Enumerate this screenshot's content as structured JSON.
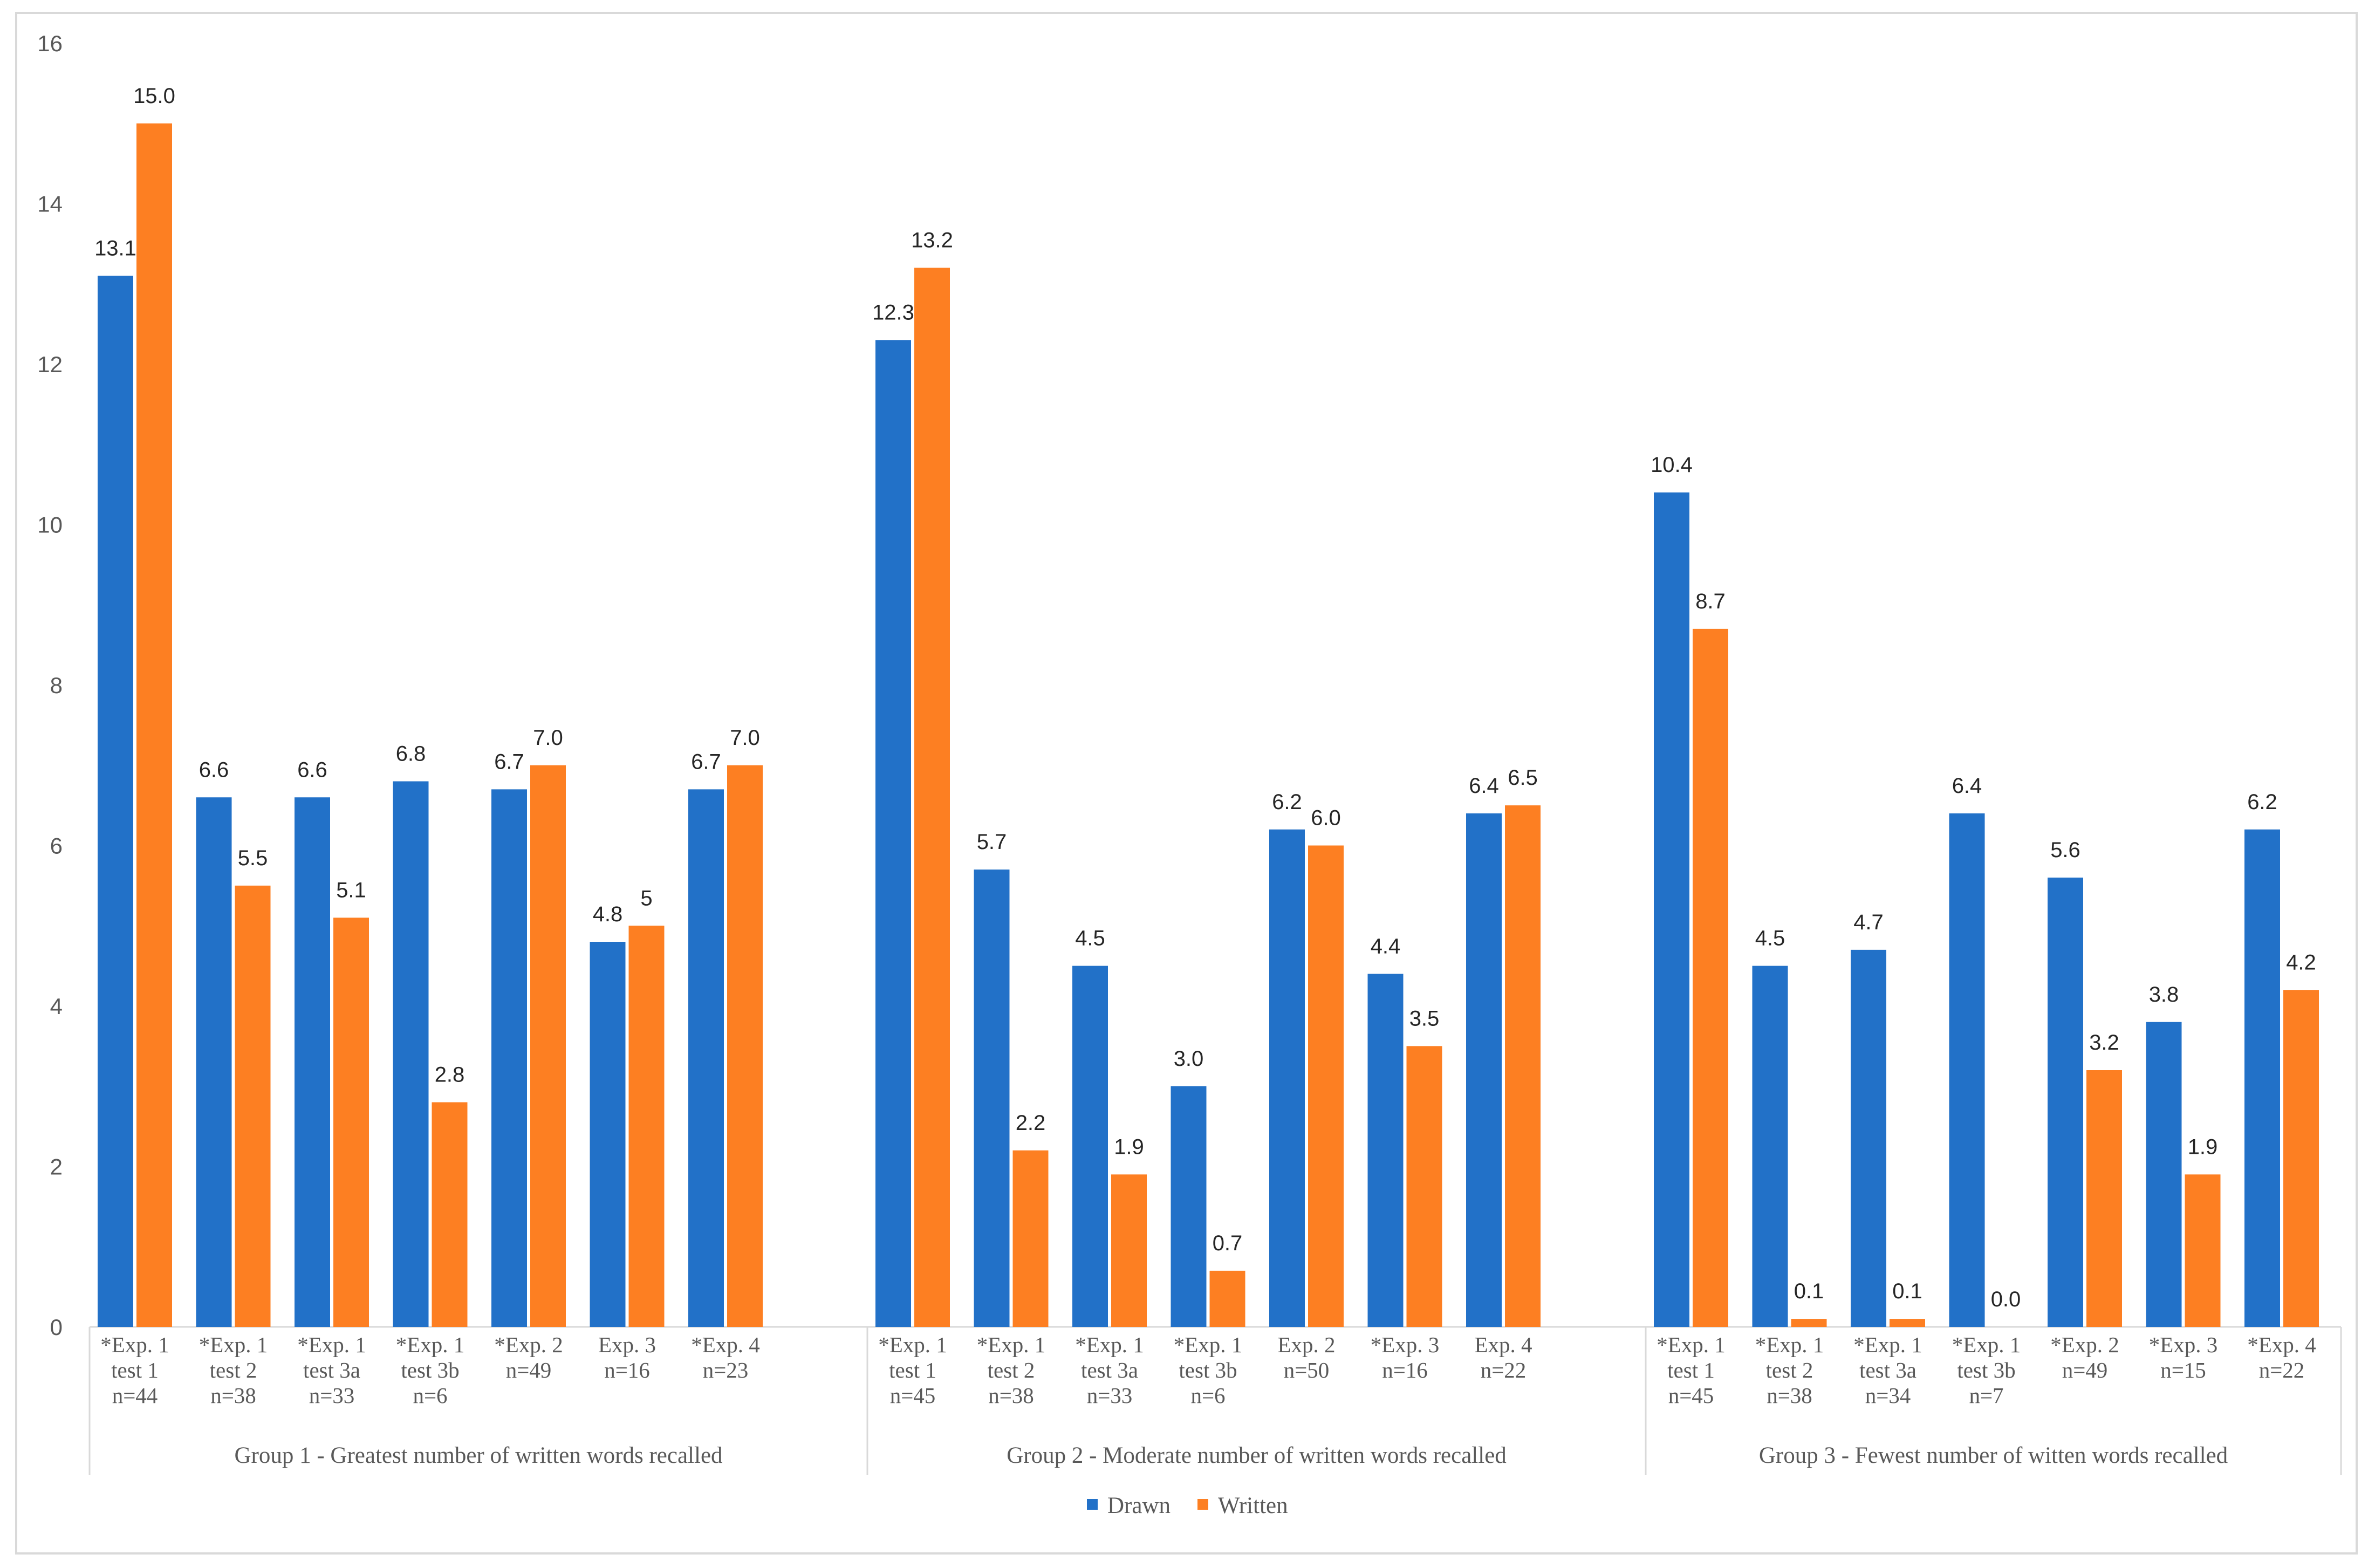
{
  "chart_data": {
    "type": "bar",
    "title": "",
    "xlabel": "",
    "ylabel": "",
    "ylim": [
      0,
      16
    ],
    "yticks": [
      0,
      2,
      4,
      6,
      8,
      10,
      12,
      14,
      16
    ],
    "grid": false,
    "legend_position": "bottom",
    "colors": {
      "Drawn": "#2271c8",
      "Written": "#fd7f22"
    },
    "groups": [
      {
        "label": "Group 1 - Greatest number of written words recalled",
        "categories": [
          [
            "*Exp. 1",
            "test 1",
            "n=44"
          ],
          [
            "*Exp. 1",
            "test 2",
            "n=38"
          ],
          [
            "*Exp. 1",
            "test 3a",
            "n=33"
          ],
          [
            "*Exp. 1",
            "test 3b",
            "n=6"
          ],
          [
            "*Exp. 2",
            "n=49"
          ],
          [
            "Exp. 3",
            "n=16"
          ],
          [
            "*Exp. 4",
            "n=23"
          ]
        ],
        "drawn": [
          13.1,
          6.6,
          6.6,
          6.8,
          6.7,
          4.8,
          6.7
        ],
        "drawn_labels": [
          "13.1",
          "6.6",
          "6.6",
          "6.8",
          "6.7",
          "4.8",
          "6.7"
        ],
        "written": [
          15.0,
          5.5,
          5.1,
          2.8,
          7.0,
          5.0,
          7.0
        ],
        "written_labels": [
          "15.0",
          "5.5",
          "5.1",
          "2.8",
          "7.0",
          "5",
          "7.0"
        ]
      },
      {
        "label": "Group 2 - Moderate number of written words recalled",
        "categories": [
          [
            "*Exp. 1",
            "test 1",
            "n=45"
          ],
          [
            "*Exp. 1",
            "test 2",
            "n=38"
          ],
          [
            "*Exp. 1",
            "test 3a",
            "n=33"
          ],
          [
            "*Exp. 1",
            "test 3b",
            "n=6"
          ],
          [
            "Exp. 2",
            "n=50"
          ],
          [
            "*Exp. 3",
            "n=16"
          ],
          [
            "Exp. 4",
            "n=22"
          ]
        ],
        "drawn": [
          12.3,
          5.7,
          4.5,
          3.0,
          6.2,
          4.4,
          6.4
        ],
        "drawn_labels": [
          "12.3",
          "5.7",
          "4.5",
          "3.0",
          "6.2",
          "4.4",
          "6.4"
        ],
        "written": [
          13.2,
          2.2,
          1.9,
          0.7,
          6.0,
          3.5,
          6.5
        ],
        "written_labels": [
          "13.2",
          "2.2",
          "1.9",
          "0.7",
          "6.0",
          "3.5",
          "6.5"
        ]
      },
      {
        "label": "Group 3 - Fewest number of witten words recalled",
        "categories": [
          [
            "*Exp. 1",
            "test 1",
            "n=45"
          ],
          [
            "*Exp. 1",
            "test 2",
            "n=38"
          ],
          [
            "*Exp. 1",
            "test 3a",
            "n=34"
          ],
          [
            "*Exp. 1",
            "test 3b",
            "n=7"
          ],
          [
            "*Exp. 2",
            "n=49"
          ],
          [
            "*Exp. 3",
            "n=15"
          ],
          [
            "*Exp. 4",
            "n=22"
          ]
        ],
        "drawn": [
          10.4,
          4.5,
          4.7,
          6.4,
          5.6,
          3.8,
          6.2
        ],
        "drawn_labels": [
          "10.4",
          "4.5",
          "4.7",
          "6.4",
          "5.6",
          "3.8",
          "6.2"
        ],
        "written": [
          8.7,
          0.1,
          0.1,
          0.0,
          3.2,
          1.9,
          4.2
        ],
        "written_labels": [
          "8.7",
          "0.1",
          "0.1",
          "0.0",
          "3.2",
          "1.9",
          "4.2"
        ]
      }
    ],
    "series": [
      {
        "name": "Drawn",
        "key": "drawn"
      },
      {
        "name": "Written",
        "key": "written"
      }
    ]
  }
}
